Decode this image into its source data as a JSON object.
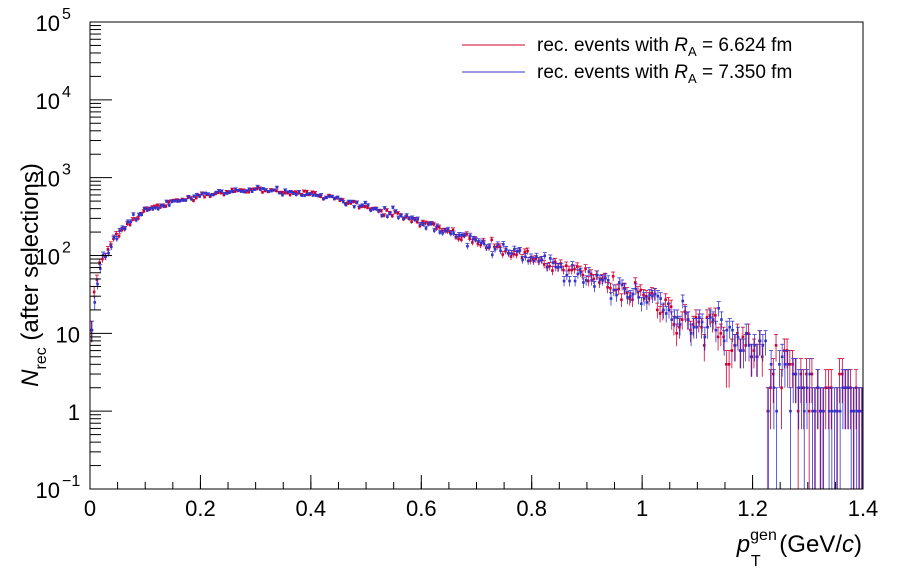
{
  "chart_data": {
    "type": "scatter",
    "title": "",
    "xlabel": {
      "main": "p",
      "sub": "T",
      "sup": "gen",
      "unit": " (GeV/",
      "unit_italic": "c",
      "unit_end": ")"
    },
    "ylabel": {
      "main": "N",
      "sub": "rec",
      "rest": " (after selections)"
    },
    "xlim": [
      0,
      1.4
    ],
    "ylim": [
      0.1,
      100000
    ],
    "yscale": "log",
    "x_ticks": [
      "0",
      "0.2",
      "0.4",
      "0.6",
      "0.8",
      "1",
      "1.2",
      "1.4"
    ],
    "y_ticks": [
      {
        "value": 0.1,
        "base": "10",
        "exp": "−1"
      },
      {
        "value": 1,
        "base": "1",
        "exp": ""
      },
      {
        "value": 10,
        "base": "10",
        "exp": ""
      },
      {
        "value": 100,
        "base": "10",
        "exp": "2"
      },
      {
        "value": 1000,
        "base": "10",
        "exp": "3"
      },
      {
        "value": 10000,
        "base": "10",
        "exp": "4"
      },
      {
        "value": 100000,
        "base": "10",
        "exp": "5"
      }
    ],
    "legend_position": "top-right",
    "series": [
      {
        "name_prefix": "rec. events with ",
        "name_var": "R",
        "name_sub": "A",
        "name_value": " = 6.624 fm",
        "color": "#cc0033"
      },
      {
        "name_prefix": "rec. events with ",
        "name_var": "R",
        "name_sub": "A",
        "name_value": " = 7.350 fm",
        "color": "#3333cc"
      }
    ],
    "trend": {
      "x": [
        0.0,
        0.01,
        0.02,
        0.05,
        0.1,
        0.2,
        0.3,
        0.4,
        0.5,
        0.6,
        0.7,
        0.8,
        0.9,
        1.0,
        1.1,
        1.2,
        1.3,
        1.4
      ],
      "y": [
        8,
        45,
        80,
        200,
        380,
        600,
        700,
        620,
        430,
        260,
        150,
        90,
        55,
        30,
        14,
        6,
        2,
        1
      ]
    },
    "bin_width": 0.005
  }
}
